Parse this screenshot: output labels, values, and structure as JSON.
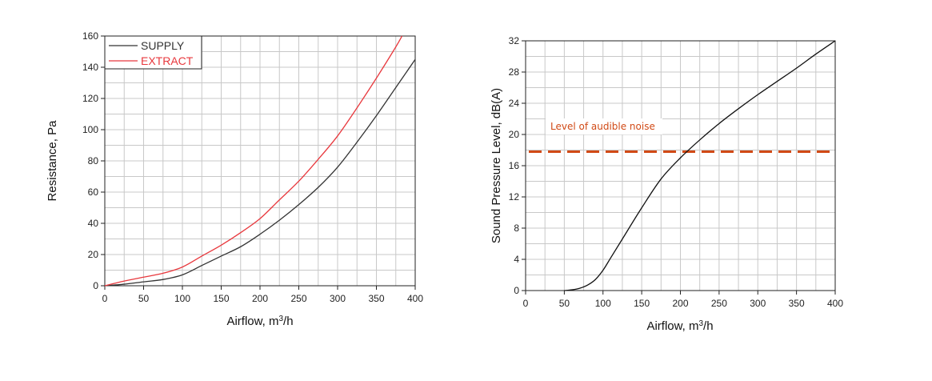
{
  "chart_data": [
    {
      "type": "line",
      "xlabel": "Airflow, m3/h",
      "xlabel_main": "Airflow, m",
      "xlabel_sup": "3",
      "xlabel_tail": "/h",
      "ylabel": "Resistance, Pa",
      "xlim": [
        0,
        400
      ],
      "ylim": [
        0,
        160
      ],
      "xticks": [
        0,
        50,
        100,
        150,
        200,
        250,
        300,
        350,
        400
      ],
      "yticks": [
        0,
        20,
        40,
        60,
        80,
        100,
        120,
        140,
        160
      ],
      "grid": true,
      "legend_position": "top-left",
      "series": [
        {
          "name": "SUPPLY",
          "color": "#333333",
          "x": [
            0,
            25,
            50,
            75,
            100,
            125,
            150,
            175,
            200,
            225,
            250,
            275,
            300,
            325,
            350,
            375,
            400
          ],
          "y": [
            0,
            1,
            2.5,
            4,
            7,
            13,
            19,
            25,
            33,
            42,
            52,
            63,
            76,
            92,
            109,
            127,
            145
          ]
        },
        {
          "name": "EXTRACT",
          "color": "#e8383d",
          "x": [
            0,
            25,
            50,
            75,
            100,
            125,
            150,
            175,
            200,
            225,
            250,
            275,
            300,
            325,
            350,
            375,
            383
          ],
          "y": [
            0,
            3,
            5.5,
            8,
            12,
            19,
            26,
            34,
            43,
            55,
            67,
            81,
            96,
            114,
            133,
            153,
            160
          ]
        }
      ]
    },
    {
      "type": "line",
      "xlabel": "Airflow, m3/h",
      "xlabel_main": "Airflow, m",
      "xlabel_sup": "3",
      "xlabel_tail": "/h",
      "ylabel": "Sound Pressure Level, dB(A)",
      "xlim": [
        0,
        400
      ],
      "ylim": [
        0,
        32
      ],
      "xticks": [
        0,
        50,
        100,
        150,
        200,
        250,
        300,
        350,
        400
      ],
      "yticks": [
        0,
        4,
        8,
        12,
        16,
        20,
        24,
        28,
        32
      ],
      "grid": true,
      "series": [
        {
          "color": "#111111",
          "x": [
            50,
            60,
            70,
            80,
            90,
            100,
            110,
            125,
            150,
            175,
            200,
            225,
            250,
            275,
            300,
            325,
            350,
            375,
            400
          ],
          "y": [
            0,
            0.1,
            0.3,
            0.7,
            1.4,
            2.6,
            4.2,
            6.6,
            10.6,
            14.3,
            17.0,
            19.3,
            21.4,
            23.3,
            25.1,
            26.8,
            28.5,
            30.3,
            32
          ]
        }
      ],
      "reference_line": {
        "y": 17.8,
        "label": "Level of audible noise",
        "color": "#d14a16"
      }
    }
  ]
}
